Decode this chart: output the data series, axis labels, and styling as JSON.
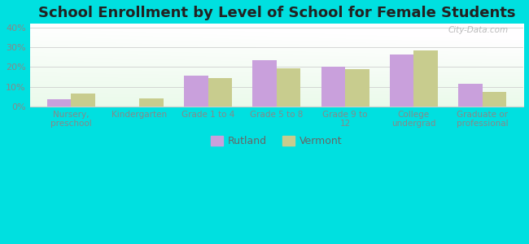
{
  "title": "School Enrollment by Level of School for Female Students",
  "categories": [
    "Nursery,\npreschool",
    "Kindergarten",
    "Grade 1 to 4",
    "Grade 5 to 8",
    "Grade 9 to\n12",
    "College\nundergrad",
    "Graduate or\nprofessional"
  ],
  "rutland": [
    3.5,
    0,
    15.5,
    23.5,
    20.0,
    26.5,
    11.5
  ],
  "vermont": [
    6.5,
    4.0,
    14.5,
    19.5,
    19.0,
    28.5,
    7.5
  ],
  "rutland_color": "#c9a0dc",
  "vermont_color": "#c8cc8e",
  "background_color": "#00e0e0",
  "grid_color": "#cccccc",
  "title_fontsize": 13,
  "yticks": [
    0,
    10,
    20,
    30,
    40
  ],
  "ylim": [
    0,
    42
  ],
  "bar_width": 0.35,
  "legend_labels": [
    "Rutland",
    "Vermont"
  ],
  "tick_color": "#aaaaaa",
  "label_color": "#888888"
}
